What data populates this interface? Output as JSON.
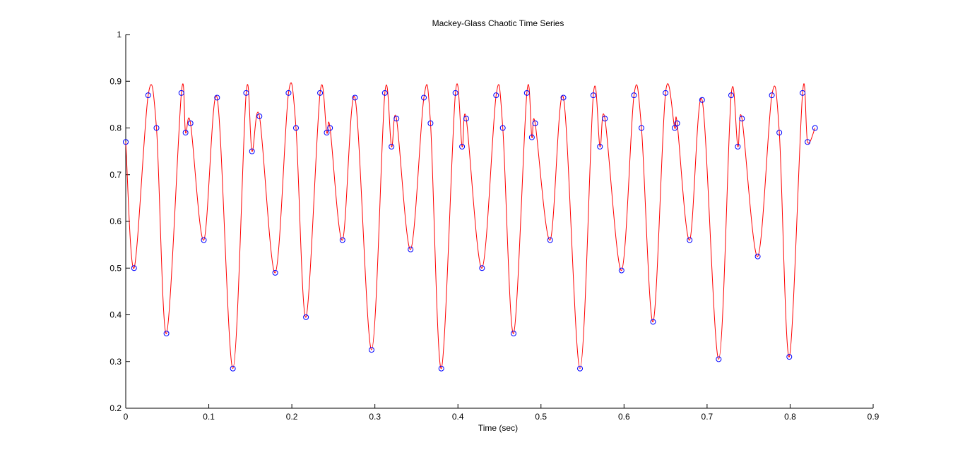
{
  "chart_data": {
    "type": "line",
    "title": "Mackey-Glass Chaotic Time Series",
    "xlabel": "Time (sec)",
    "x": [
      0,
      0.01,
      0.027,
      0.037,
      0.049,
      0.067,
      0.072,
      0.078,
      0.094,
      0.11,
      0.129,
      0.145,
      0.152,
      0.161,
      0.18,
      0.196,
      0.205,
      0.217,
      0.234,
      0.242,
      0.246,
      0.261,
      0.276,
      0.296,
      0.312,
      0.32,
      0.326,
      0.343,
      0.359,
      0.367,
      0.38,
      0.397,
      0.405,
      0.41,
      0.429,
      0.446,
      0.454,
      0.467,
      0.483,
      0.489,
      0.493,
      0.511,
      0.527,
      0.547,
      0.563,
      0.571,
      0.577,
      0.597,
      0.612,
      0.621,
      0.635,
      0.65,
      0.661,
      0.664,
      0.679,
      0.694,
      0.714,
      0.729,
      0.737,
      0.742,
      0.761,
      0.778,
      0.787,
      0.799,
      0.815,
      0.821,
      0.83
    ],
    "values": [
      0.77,
      0.5,
      0.87,
      0.8,
      0.36,
      0.875,
      0.79,
      0.81,
      0.56,
      0.865,
      0.285,
      0.875,
      0.75,
      0.825,
      0.49,
      0.875,
      0.8,
      0.395,
      0.875,
      0.79,
      0.8,
      0.56,
      0.865,
      0.325,
      0.875,
      0.76,
      0.82,
      0.54,
      0.865,
      0.81,
      0.285,
      0.875,
      0.76,
      0.82,
      0.5,
      0.87,
      0.8,
      0.36,
      0.875,
      0.78,
      0.81,
      0.56,
      0.865,
      0.285,
      0.87,
      0.76,
      0.82,
      0.495,
      0.87,
      0.8,
      0.385,
      0.875,
      0.8,
      0.81,
      0.56,
      0.86,
      0.305,
      0.87,
      0.76,
      0.82,
      0.525,
      0.87,
      0.79,
      0.31,
      0.875,
      0.77,
      0.8
    ],
    "line_color": "#ff0000",
    "marker_color": "#0000ff",
    "xlim": [
      0,
      0.9
    ],
    "xticks": [
      0,
      0.1,
      0.2,
      0.3,
      0.4,
      0.5,
      0.6,
      0.7,
      0.8,
      0.9
    ],
    "ylim": [
      0.2,
      1
    ],
    "yticks": [
      0.2,
      0.3,
      0.4,
      0.5,
      0.6,
      0.7,
      0.8,
      0.9,
      1
    ]
  }
}
